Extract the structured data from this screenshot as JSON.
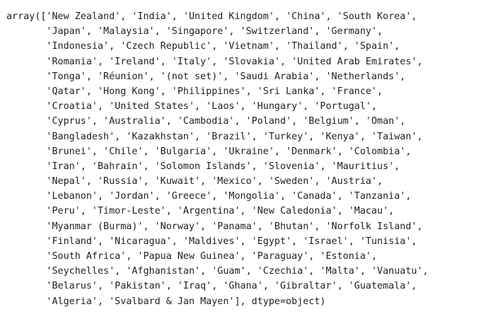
{
  "output": {
    "lines": [
      "array(['New Zealand', 'India', 'United Kingdom', 'China', 'South Korea',",
      "       'Japan', 'Malaysia', 'Singapore', 'Switzerland', 'Germany',",
      "       'Indonesia', 'Czech Republic', 'Vietnam', 'Thailand', 'Spain',",
      "       'Romania', 'Ireland', 'Italy', 'Slovakia', 'United Arab Emirates',",
      "       'Tonga', 'Réunion', '(not set)', 'Saudi Arabia', 'Netherlands',",
      "       'Qatar', 'Hong Kong', 'Philippines', 'Sri Lanka', 'France',",
      "       'Croatia', 'United States', 'Laos', 'Hungary', 'Portugal',",
      "       'Cyprus', 'Australia', 'Cambodia', 'Poland', 'Belgium', 'Oman',",
      "       'Bangladesh', 'Kazakhstan', 'Brazil', 'Turkey', 'Kenya', 'Taiwan',",
      "       'Brunei', 'Chile', 'Bulgaria', 'Ukraine', 'Denmark', 'Colombia',",
      "       'Iran', 'Bahrain', 'Solomon Islands', 'Slovenia', 'Mauritius',",
      "       'Nepal', 'Russia', 'Kuwait', 'Mexico', 'Sweden', 'Austria',",
      "       'Lebanon', 'Jordan', 'Greece', 'Mongolia', 'Canada', 'Tanzania',",
      "       'Peru', 'Timor-Leste', 'Argentina', 'New Caledonia', 'Macau',",
      "       'Myanmar (Burma)', 'Norway', 'Panama', 'Bhutan', 'Norfolk Island',",
      "       'Finland', 'Nicaragua', 'Maldives', 'Egypt', 'Israel', 'Tunisia',",
      "       'South Africa', 'Papua New Guinea', 'Paraguay', 'Estonia',",
      "       'Seychelles', 'Afghanistan', 'Guam', 'Czechia', 'Malta', 'Vanuatu',",
      "       'Belarus', 'Pakistan', 'Iraq', 'Ghana', 'Gibraltar', 'Guatemala',",
      "       'Algeria', 'Svalbard & Jan Mayen'], dtype=object)"
    ]
  }
}
